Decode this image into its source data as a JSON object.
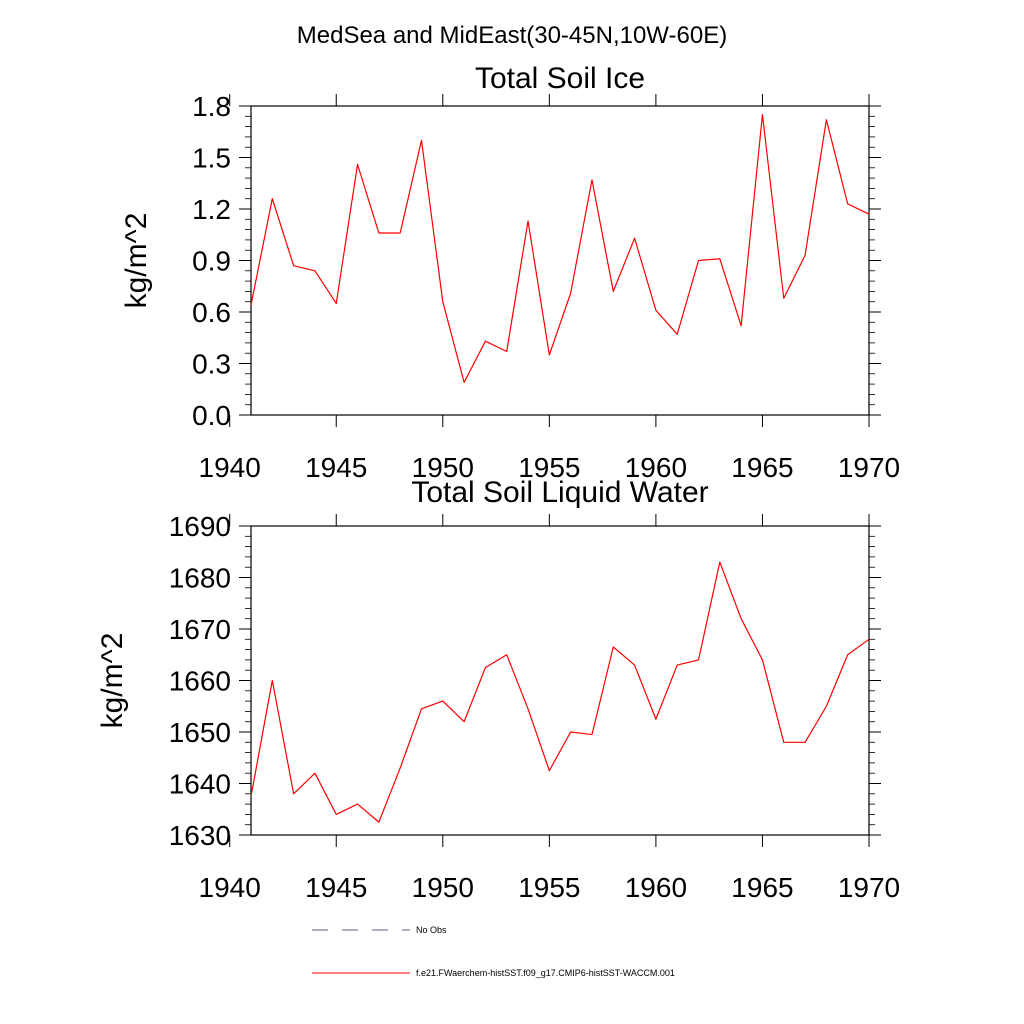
{
  "figure": {
    "suptitle": "MedSea and MidEast(30-45N,10W-60E)"
  },
  "chart_data": [
    {
      "type": "line",
      "title": "Total Soil Ice",
      "xlabel": "",
      "ylabel": "kg/m^2",
      "xlim": [
        1941,
        1970
      ],
      "ylim": [
        0.0,
        1.8
      ],
      "xticks": [
        1940,
        1945,
        1950,
        1955,
        1960,
        1965,
        1970
      ],
      "xtick_labels": [
        "1940",
        "1945",
        "1950",
        "1955",
        "1960",
        "1965",
        "1970"
      ],
      "yticks": [
        0.0,
        0.3,
        0.6,
        0.9,
        1.2,
        1.5,
        1.8
      ],
      "ytick_labels": [
        "0.0",
        "0.3",
        "0.6",
        "0.9",
        "1.2",
        "1.5",
        "1.8"
      ],
      "series": [
        {
          "name": "f.e21.FWaerchem-histSST.f09_g17.CMIP6-histSST-WACCM.001",
          "color": "#ff0000",
          "x": [
            1941,
            1942,
            1943,
            1944,
            1945,
            1946,
            1947,
            1948,
            1949,
            1950,
            1951,
            1952,
            1953,
            1954,
            1955,
            1956,
            1957,
            1958,
            1959,
            1960,
            1961,
            1962,
            1963,
            1964,
            1965,
            1966,
            1967,
            1968,
            1969,
            1970
          ],
          "y": [
            0.64,
            1.26,
            0.87,
            0.84,
            0.65,
            1.46,
            1.06,
            1.06,
            1.6,
            0.66,
            0.19,
            0.43,
            0.37,
            1.13,
            0.35,
            0.71,
            1.37,
            0.72,
            1.03,
            0.61,
            0.47,
            0.9,
            0.91,
            0.52,
            1.75,
            0.68,
            0.93,
            1.72,
            1.23,
            1.17
          ]
        }
      ]
    },
    {
      "type": "line",
      "title": "Total Soil Liquid Water",
      "xlabel": "",
      "ylabel": "kg/m^2",
      "xlim": [
        1941,
        1970
      ],
      "ylim": [
        1630,
        1690
      ],
      "xticks": [
        1940,
        1945,
        1950,
        1955,
        1960,
        1965,
        1970
      ],
      "xtick_labels": [
        "1940",
        "1945",
        "1950",
        "1955",
        "1960",
        "1965",
        "1970"
      ],
      "yticks": [
        1630,
        1640,
        1650,
        1660,
        1670,
        1680,
        1690
      ],
      "ytick_labels": [
        "1630",
        "1640",
        "1650",
        "1660",
        "1670",
        "1680",
        "1690"
      ],
      "series": [
        {
          "name": "f.e21.FWaerchem-histSST.f09_g17.CMIP6-histSST-WACCM.001",
          "color": "#ff0000",
          "x": [
            1941,
            1942,
            1943,
            1944,
            1945,
            1946,
            1947,
            1948,
            1949,
            1950,
            1951,
            1952,
            1953,
            1954,
            1955,
            1956,
            1957,
            1958,
            1959,
            1960,
            1961,
            1962,
            1963,
            1964,
            1965,
            1966,
            1967,
            1968,
            1969,
            1970
          ],
          "y": [
            1637.5,
            1660,
            1638,
            1642,
            1634,
            1636,
            1632.5,
            1643,
            1654.5,
            1656,
            1652,
            1662.5,
            1665,
            1654.5,
            1642.5,
            1650,
            1649.5,
            1666.5,
            1663,
            1652.5,
            1663,
            1664,
            1683,
            1672,
            1664,
            1648,
            1648,
            1655,
            1665,
            1668
          ]
        }
      ]
    }
  ],
  "legend": {
    "placement": "bottom",
    "entries": [
      {
        "label": "No Obs",
        "color": "#5a5a8c",
        "style": "dashed"
      },
      {
        "label": "f.e21.FWaerchem-histSST.f09_g17.CMIP6-histSST-WACCM.001",
        "color": "#ff0000",
        "style": "solid"
      }
    ]
  }
}
